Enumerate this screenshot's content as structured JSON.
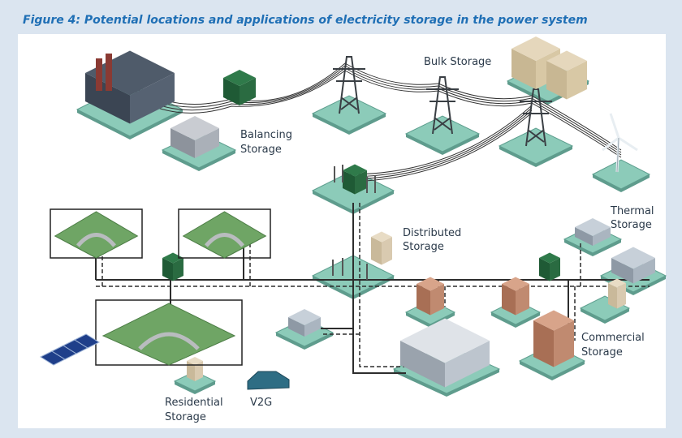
{
  "header": {
    "title": "Figure 4: Potential locations and applications of electricity storage in the power system"
  },
  "labels": [
    {
      "lines": [
        "Bulk Storage"
      ]
    },
    {
      "lines": [
        "Balancing",
        "Storage"
      ]
    },
    {
      "lines": [
        "Distributed",
        "Storage"
      ]
    },
    {
      "lines": [
        "Thermal",
        "Storage"
      ]
    },
    {
      "lines": [
        "Commercial",
        "Storage"
      ]
    },
    {
      "lines": [
        "Residential",
        "Storage"
      ]
    },
    {
      "lines": [
        "V2G"
      ]
    }
  ]
}
